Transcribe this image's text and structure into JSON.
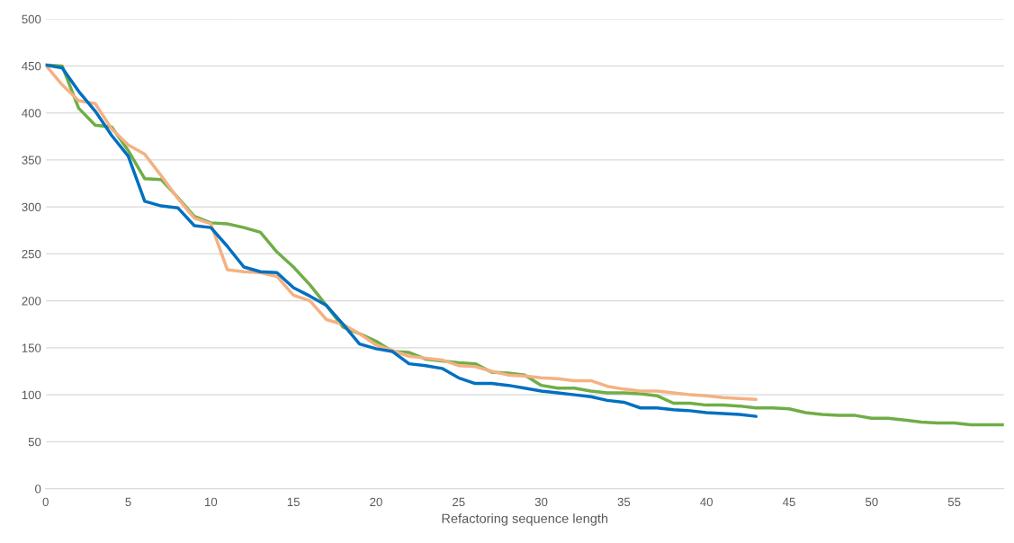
{
  "chart_data": {
    "type": "line",
    "xlabel": "Refactoring sequence length",
    "xlim": [
      0,
      58
    ],
    "xticks": [
      0,
      5,
      10,
      15,
      20,
      25,
      30,
      35,
      40,
      45,
      50,
      55
    ],
    "ylim": [
      0,
      500
    ],
    "yticks": [
      0,
      50,
      100,
      150,
      200,
      250,
      300,
      350,
      400,
      450,
      500
    ],
    "grid": "y",
    "series": [
      {
        "color": "#70ad47",
        "x": [
          0,
          1,
          2,
          3,
          4,
          5,
          6,
          7,
          8,
          9,
          10,
          11,
          12,
          13,
          14,
          15,
          16,
          17,
          18,
          19,
          20,
          21,
          22,
          23,
          24,
          25,
          26,
          27,
          28,
          29,
          30,
          31,
          32,
          33,
          34,
          35,
          36,
          37,
          38,
          39,
          40,
          41,
          42,
          43,
          44,
          45,
          46,
          47,
          48,
          49,
          50,
          51,
          52,
          53,
          54,
          55,
          56,
          57,
          58
        ],
        "values": [
          451,
          450,
          405,
          387,
          385,
          360,
          330,
          329,
          310,
          290,
          283,
          282,
          278,
          273,
          252,
          236,
          217,
          195,
          172,
          165,
          157,
          146,
          145,
          138,
          136,
          134,
          133,
          124,
          123,
          121,
          110,
          107,
          107,
          104,
          102,
          102,
          101,
          99,
          91,
          91,
          89,
          89,
          88,
          86,
          86,
          85,
          81,
          79,
          78,
          78,
          75,
          75,
          73,
          71,
          70,
          70,
          68,
          68,
          68
        ]
      },
      {
        "color": "#f4b183",
        "x": [
          0,
          1,
          2,
          3,
          4,
          5,
          6,
          7,
          8,
          9,
          10,
          11,
          12,
          13,
          14,
          15,
          16,
          17,
          18,
          19,
          20,
          21,
          22,
          23,
          24,
          25,
          26,
          27,
          28,
          29,
          30,
          31,
          32,
          33,
          34,
          35,
          36,
          37,
          38,
          39,
          40,
          41,
          42,
          43
        ],
        "values": [
          451,
          430,
          413,
          410,
          383,
          366,
          356,
          333,
          309,
          288,
          282,
          233,
          231,
          230,
          226,
          206,
          200,
          180,
          175,
          165,
          153,
          147,
          141,
          139,
          137,
          131,
          130,
          125,
          121,
          120,
          118,
          117,
          115,
          115,
          109,
          106,
          104,
          104,
          102,
          100,
          99,
          97,
          96,
          95
        ]
      },
      {
        "color": "#0070c0",
        "x": [
          0,
          1,
          2,
          3,
          4,
          5,
          6,
          7,
          8,
          9,
          10,
          11,
          12,
          13,
          14,
          15,
          16,
          17,
          18,
          19,
          20,
          21,
          22,
          23,
          24,
          25,
          26,
          27,
          28,
          29,
          30,
          31,
          32,
          33,
          34,
          35,
          36,
          37,
          38,
          39,
          40,
          41,
          42,
          43
        ],
        "values": [
          451,
          448,
          423,
          402,
          376,
          354,
          306,
          301,
          299,
          280,
          278,
          258,
          236,
          231,
          230,
          214,
          205,
          195,
          175,
          154,
          149,
          146,
          133,
          131,
          128,
          118,
          112,
          112,
          110,
          107,
          104,
          102,
          100,
          98,
          94,
          92,
          86,
          86,
          84,
          83,
          81,
          80,
          79,
          77
        ]
      }
    ]
  }
}
